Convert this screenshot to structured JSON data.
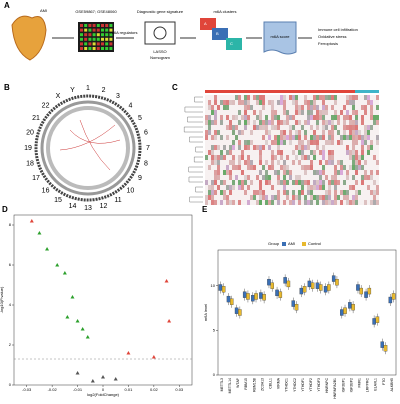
{
  "workflow": {
    "label": "A",
    "ami": "AMI",
    "datasets": "GSE59867; GSE48060",
    "regulators": "m6A regulators",
    "signature": "Diagnostic gene signature",
    "methods": [
      "LASSO",
      "Nomogram"
    ],
    "clusters_title": "m6A clusters",
    "clusters": [
      "A",
      "B",
      "C"
    ],
    "score": "m6A score",
    "outcomes": [
      "Immune cell infiltration",
      "Oxidative stress",
      "Ferroptosis"
    ]
  },
  "circos": {
    "label": "B",
    "chromosomes": [
      "1",
      "2",
      "3",
      "4",
      "5",
      "6",
      "7",
      "8",
      "9",
      "10",
      "11",
      "12",
      "13",
      "14",
      "15",
      "16",
      "17",
      "18",
      "19",
      "20",
      "21",
      "22",
      "X",
      "Y"
    ]
  },
  "heatmap": {
    "label": "C"
  },
  "chart_data": [
    {
      "type": "scatter",
      "label": "D",
      "xlabel": "log2(FoldChange)",
      "ylabel": "-log10(P.value)",
      "xlim": [
        -0.035,
        0.035
      ],
      "ylim": [
        0,
        8.5
      ],
      "xticks": [
        -0.03,
        -0.02,
        -0.01,
        0,
        0.01,
        0.02,
        0.03
      ],
      "yticks": [
        0,
        2,
        4,
        6,
        8
      ],
      "threshold": 1.3,
      "series": [
        {
          "name": "down",
          "color": "#2ca02c",
          "x": [
            -0.025,
            -0.022,
            -0.018,
            -0.015,
            -0.012,
            -0.014,
            -0.01,
            -0.008,
            -0.006
          ],
          "values": [
            7.6,
            6.8,
            6,
            5.6,
            4.4,
            3.4,
            3.2,
            2.8,
            2.4
          ]
        },
        {
          "name": "up",
          "color": "#e0453a",
          "x": [
            -0.028,
            0.025,
            0.026,
            0.01,
            0.02
          ],
          "values": [
            8.2,
            5.2,
            3.2,
            1.6,
            1.4
          ]
        },
        {
          "name": "ns",
          "color": "#555555",
          "x": [
            -0.01,
            0,
            -0.004,
            0.005
          ],
          "values": [
            0.6,
            0.4,
            0.2,
            0.3
          ]
        }
      ]
    },
    {
      "type": "box",
      "label": "E",
      "ylabel": "m6A level",
      "legend_title": "Group",
      "ylim": [
        0,
        14
      ],
      "yticks": [
        0,
        5,
        10
      ],
      "categories": [
        "METTL3",
        "METTL14",
        "WTAP",
        "RBM15",
        "RBM15B",
        "ZC3H13",
        "CBLL1",
        "VIRMA",
        "YTHDC1",
        "YTHDC2",
        "YTHDF1",
        "YTHDF2",
        "YTHDF3",
        "HNRNPC",
        "HNRNPA2B1",
        "IGF2BP1",
        "IGF2BP2",
        "FMR1",
        "LRPPRC",
        "ELAVL1",
        "FTO",
        "ALKBH5"
      ],
      "series": [
        {
          "name": "AMI",
          "color": "#3a6fb5",
          "values": [
            9.8,
            8.5,
            7.2,
            9.0,
            8.6,
            8.9,
            10.4,
            9.2,
            10.6,
            8.0,
            9.4,
            10.2,
            10.0,
            9.6,
            10.8,
            7.0,
            7.8,
            9.8,
            9.0,
            6.0,
            3.4,
            8.4
          ]
        },
        {
          "name": "Control",
          "color": "#e8b92e",
          "values": [
            9.6,
            8.2,
            7.0,
            8.8,
            8.8,
            8.7,
            10.0,
            9.0,
            10.2,
            7.6,
            9.6,
            10.0,
            9.8,
            9.8,
            10.4,
            7.2,
            7.6,
            9.4,
            9.4,
            6.2,
            3.0,
            8.8
          ]
        }
      ]
    }
  ]
}
